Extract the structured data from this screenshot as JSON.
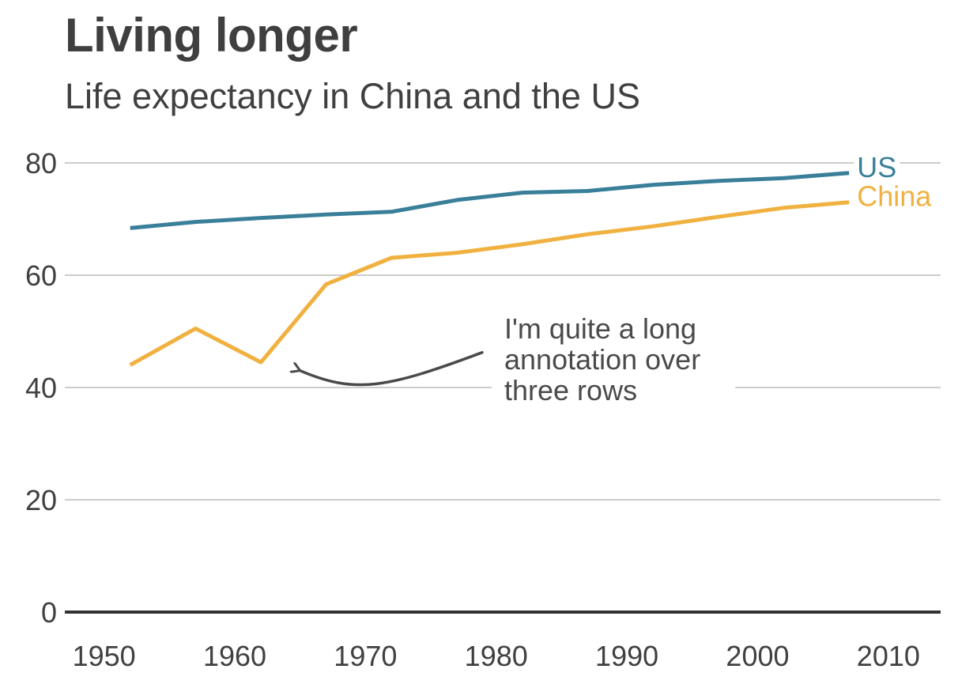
{
  "chart_data": {
    "type": "line",
    "title": "Living longer",
    "subtitle": "Life expectancy in China and the US",
    "xlabel": "",
    "ylabel": "",
    "xlim": [
      1947,
      2014
    ],
    "ylim": [
      0,
      80
    ],
    "x_ticks": [
      1950,
      1960,
      1970,
      1980,
      1990,
      2000,
      2010
    ],
    "y_ticks": [
      0,
      20,
      40,
      60,
      80
    ],
    "grid": true,
    "x": [
      1952,
      1957,
      1962,
      1967,
      1972,
      1977,
      1982,
      1987,
      1992,
      1997,
      2002,
      2007
    ],
    "series": [
      {
        "name": "US",
        "color": "#3a7f9a",
        "values": [
          68.4,
          69.5,
          70.2,
          70.8,
          71.3,
          73.4,
          74.7,
          75.0,
          76.1,
          76.8,
          77.3,
          78.2
        ]
      },
      {
        "name": "China",
        "color": "#f0b140",
        "values": [
          44.0,
          50.5,
          44.5,
          58.4,
          63.1,
          64.0,
          65.5,
          67.3,
          68.7,
          70.4,
          72.0,
          73.0
        ]
      }
    ],
    "annotations": [
      {
        "lines": [
          "I'm quite a long",
          "annotation over",
          "three rows"
        ],
        "target": {
          "x": 1965,
          "y": 43
        }
      }
    ]
  }
}
